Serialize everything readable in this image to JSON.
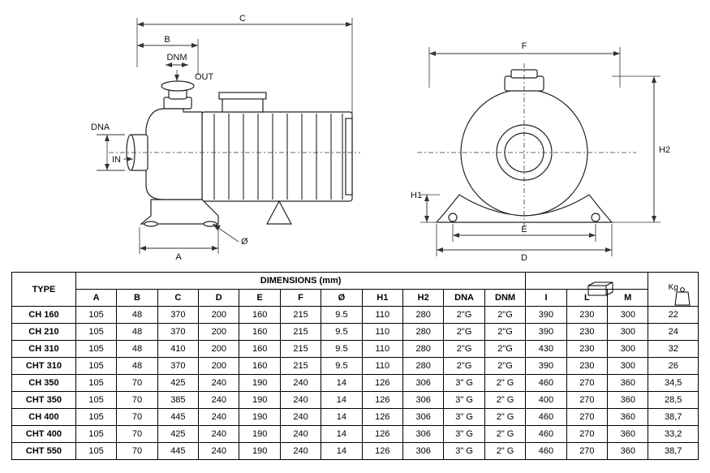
{
  "drawing": {
    "stroke_color": "#2a2a2a",
    "side_view": {
      "dims": {
        "A": "A",
        "B": "B",
        "C": "C",
        "DNM": "DNM",
        "DNA": "DNA",
        "IN": "IN",
        "OUT": "OUT",
        "phi": "Ø"
      }
    },
    "front_view": {
      "dims": {
        "D": "D",
        "E": "E",
        "F": "F",
        "H1": "H1",
        "H2": "H2"
      }
    }
  },
  "table": {
    "title_type": "TYPE",
    "title_dims": "DIMENSIONS (mm)",
    "columns_dims": [
      "A",
      "B",
      "C",
      "D",
      "E",
      "F",
      "Ø",
      "H1",
      "H2",
      "DNA",
      "DNM"
    ],
    "columns_box": [
      "I",
      "L",
      "M"
    ],
    "weight_unit": "Kg",
    "rows": [
      {
        "type": "CH 160",
        "v": [
          "105",
          "48",
          "370",
          "200",
          "160",
          "215",
          "9.5",
          "110",
          "280",
          "2\"G",
          "2\"G",
          "390",
          "230",
          "300",
          "22"
        ]
      },
      {
        "type": "CH 210",
        "v": [
          "105",
          "48",
          "370",
          "200",
          "160",
          "215",
          "9.5",
          "110",
          "280",
          "2\"G",
          "2\"G",
          "390",
          "230",
          "300",
          "24"
        ]
      },
      {
        "type": "CH 310",
        "v": [
          "105",
          "48",
          "410",
          "200",
          "160",
          "215",
          "9.5",
          "110",
          "280",
          "2\"G",
          "2\"G",
          "430",
          "230",
          "300",
          "32"
        ]
      },
      {
        "type": "CHT 310",
        "v": [
          "105",
          "48",
          "370",
          "200",
          "160",
          "215",
          "9.5",
          "110",
          "280",
          "2\"G",
          "2\"G",
          "390",
          "230",
          "300",
          "26"
        ]
      },
      {
        "type": "CH 350",
        "v": [
          "105",
          "70",
          "425",
          "240",
          "190",
          "240",
          "14",
          "126",
          "306",
          "3\" G",
          "2\" G",
          "460",
          "270",
          "360",
          "34,5"
        ]
      },
      {
        "type": "CHT 350",
        "v": [
          "105",
          "70",
          "385",
          "240",
          "190",
          "240",
          "14",
          "126",
          "306",
          "3\" G",
          "2\" G",
          "400",
          "270",
          "360",
          "28,5"
        ]
      },
      {
        "type": "CH 400",
        "v": [
          "105",
          "70",
          "445",
          "240",
          "190",
          "240",
          "14",
          "126",
          "306",
          "3\" G",
          "2\" G",
          "460",
          "270",
          "360",
          "38,7"
        ]
      },
      {
        "type": "CHT 400",
        "v": [
          "105",
          "70",
          "425",
          "240",
          "190",
          "240",
          "14",
          "126",
          "306",
          "3\" G",
          "2\" G",
          "460",
          "270",
          "360",
          "33,2"
        ]
      },
      {
        "type": "CHT 550",
        "v": [
          "105",
          "70",
          "445",
          "240",
          "190",
          "240",
          "14",
          "126",
          "306",
          "3\" G",
          "2\" G",
          "460",
          "270",
          "360",
          "38,7"
        ]
      }
    ]
  }
}
